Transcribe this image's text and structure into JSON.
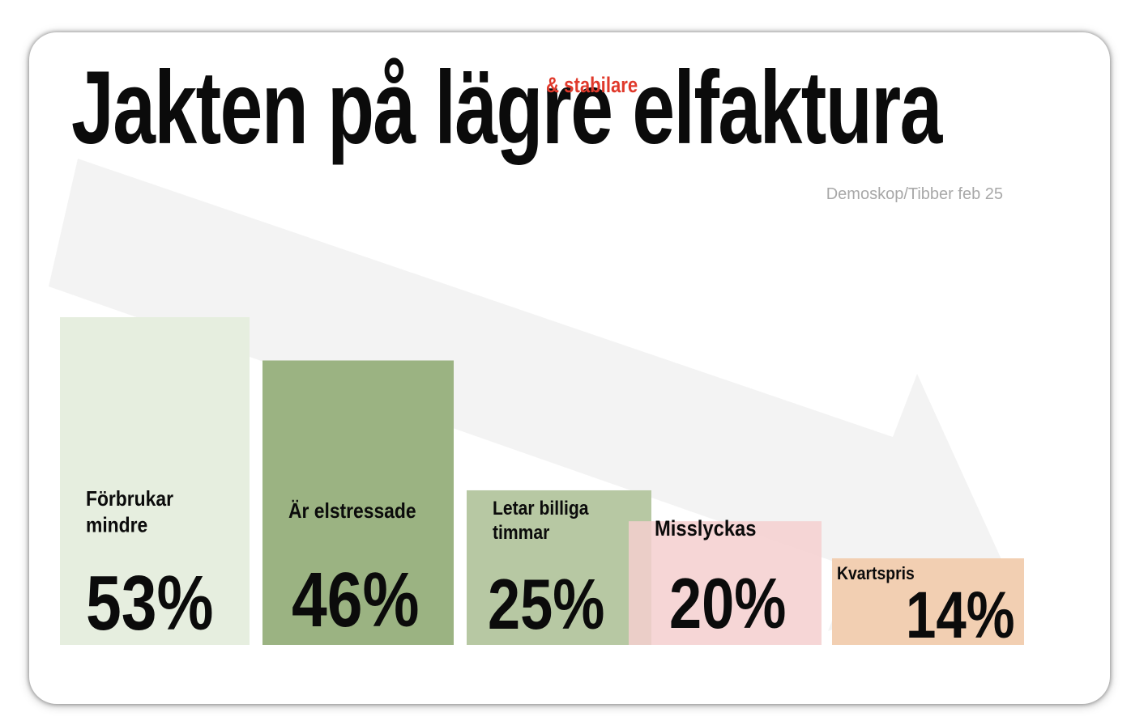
{
  "title": "Jakten på lägre elfaktura",
  "subtitle": "& stabilare",
  "source": "Demoskop/Tibber feb 25",
  "chart_data": {
    "type": "bar",
    "title": "Jakten på lägre elfaktura",
    "subtitle": "& stabilare",
    "ylim": [
      0,
      55
    ],
    "grid": false,
    "categories": [
      "Förbrukar mindre",
      "Är elstressade",
      "Letar billiga timmar",
      "Misslyckas",
      "Kvartspris"
    ],
    "values": [
      53,
      46,
      25,
      20,
      14
    ],
    "value_labels": [
      "53%",
      "46%",
      "25%",
      "20%",
      "14%"
    ],
    "label_lines": [
      [
        "Förbrukar",
        "mindre"
      ],
      [
        "Är elstressade"
      ],
      [
        "Letar billiga",
        "timmar"
      ],
      [
        "Misslyckas"
      ],
      [
        "Kvartspris"
      ]
    ],
    "colors": [
      "#e6eedf",
      "#9bb382",
      "#b7c8a3",
      "#f5cfcf",
      "#f2cfb2"
    ],
    "decoration": "large light-gray downward arrow behind bars"
  }
}
